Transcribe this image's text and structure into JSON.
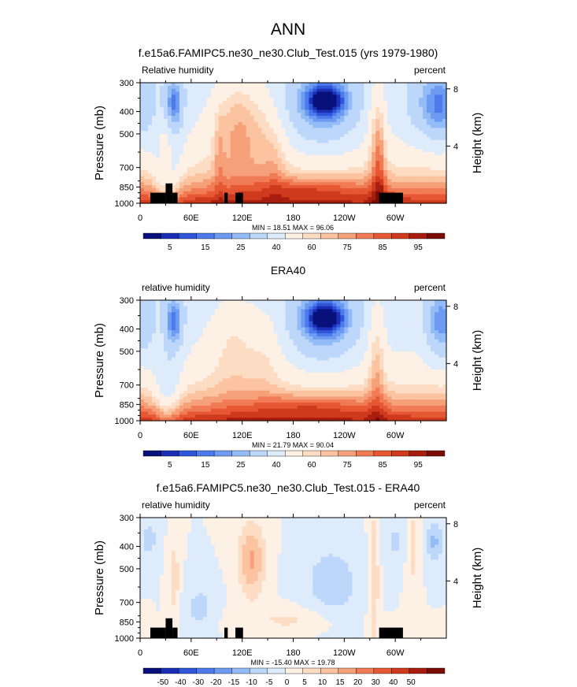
{
  "figure": {
    "title": "ANN"
  },
  "chart_data": [
    {
      "type": "heatmap",
      "title": "f.e15a6.FAMIPC5.ne30_ne30.Club_Test.015 (yrs 1979-1980)",
      "left_label": "Relative humidity",
      "right_label": "percent",
      "ylabel": "Pressure (mb)",
      "ylabel_right": "Height (km)",
      "xlabel": "",
      "x_range": [
        0,
        360
      ],
      "y_range": [
        1000,
        300
      ],
      "y_ticks": [
        "300",
        "400",
        "500",
        "700",
        "850",
        "1000"
      ],
      "y_tick_values": [
        300,
        400,
        500,
        700,
        850,
        1000
      ],
      "height_ticks": [
        "8",
        "4"
      ],
      "height_tick_values": [
        8,
        4
      ],
      "x_ticks": [
        "0",
        "60E",
        "120E",
        "180",
        "120W",
        "60W"
      ],
      "x_tick_values": [
        0,
        60,
        120,
        180,
        240,
        300
      ],
      "stats_text": "MIN =  18.51  MAX =  96.06",
      "min": 18.51,
      "max": 96.06,
      "colorbar_labels": [
        "5",
        "15",
        "25",
        "40",
        "60",
        "75",
        "85",
        "95"
      ],
      "levels": [
        5,
        10,
        15,
        20,
        25,
        30,
        40,
        50,
        60,
        65,
        70,
        75,
        80,
        85,
        90,
        95
      ],
      "has_topography": true,
      "kind": "model"
    },
    {
      "type": "heatmap",
      "title": "ERA40",
      "left_label": "relative humidity",
      "right_label": "percent",
      "ylabel": "Pressure (mb)",
      "ylabel_right": "Height (km)",
      "xlabel": "",
      "x_range": [
        0,
        360
      ],
      "y_range": [
        1000,
        300
      ],
      "y_ticks": [
        "300",
        "400",
        "500",
        "700",
        "850",
        "1000"
      ],
      "y_tick_values": [
        300,
        400,
        500,
        700,
        850,
        1000
      ],
      "height_ticks": [
        "8",
        "4"
      ],
      "height_tick_values": [
        8,
        4
      ],
      "x_ticks": [
        "0",
        "60E",
        "120E",
        "180",
        "120W",
        "60W"
      ],
      "x_tick_values": [
        0,
        60,
        120,
        180,
        240,
        300
      ],
      "stats_text": "MIN =  21.79  MAX =  90.04",
      "min": 21.79,
      "max": 90.04,
      "colorbar_labels": [
        "5",
        "15",
        "25",
        "40",
        "60",
        "75",
        "85",
        "95"
      ],
      "levels": [
        5,
        10,
        15,
        20,
        25,
        30,
        40,
        50,
        60,
        65,
        70,
        75,
        80,
        85,
        90,
        95
      ],
      "has_topography": false,
      "kind": "obs"
    },
    {
      "type": "heatmap",
      "title": "f.e15a6.FAMIPC5.ne30_ne30.Club_Test.015 - ERA40",
      "left_label": "relative humidity",
      "right_label": "percent",
      "ylabel": "Pressure (mb)",
      "ylabel_right": "Height (km)",
      "xlabel": "",
      "x_range": [
        0,
        360
      ],
      "y_range": [
        1000,
        300
      ],
      "y_ticks": [
        "300",
        "400",
        "500",
        "700",
        "850",
        "1000"
      ],
      "y_tick_values": [
        300,
        400,
        500,
        700,
        850,
        1000
      ],
      "height_ticks": [
        "8",
        "4"
      ],
      "height_tick_values": [
        8,
        4
      ],
      "x_ticks": [
        "0",
        "60E",
        "120E",
        "180",
        "120W",
        "60W"
      ],
      "x_tick_values": [
        0,
        60,
        120,
        180,
        240,
        300
      ],
      "stats_text": "MIN = -15.40  MAX =  19.78",
      "min": -15.4,
      "max": 19.78,
      "colorbar_labels": [
        "-50",
        "-40",
        "-30",
        "-20",
        "-15",
        "-10",
        "-5",
        "0",
        "5",
        "10",
        "15",
        "20",
        "30",
        "40",
        "50"
      ],
      "levels": [
        -50,
        -40,
        -30,
        -20,
        -15,
        -10,
        -5,
        0,
        5,
        10,
        15,
        20,
        30,
        40,
        50
      ],
      "has_topography": true,
      "kind": "diff"
    }
  ],
  "colors": {
    "palette": [
      "#08107a",
      "#1a2fb5",
      "#2f55d9",
      "#4c7aea",
      "#6d9bf2",
      "#93bcf7",
      "#bcd7fa",
      "#deebfb",
      "#fdf1e6",
      "#fddcc4",
      "#fbc3a0",
      "#f6a07a",
      "#f07b55",
      "#e65733",
      "#cf3a1c",
      "#a81e0e",
      "#7a0c05"
    ],
    "topography": "#000000"
  }
}
